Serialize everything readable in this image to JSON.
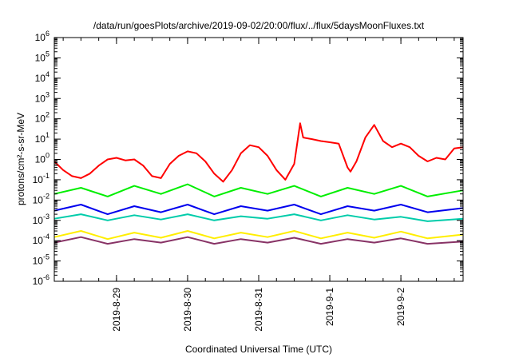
{
  "chart_data": {
    "type": "line",
    "title": "/data/run/goesPlots/archive/2019-09-02/20:00/flux/../flux/5daysMoonFluxes.txt",
    "xlabel": "Coordinated Universal Time (UTC)",
    "ylabel": "protons/cm²-s-sr-MeV",
    "y_scale": "log",
    "ylim_exp": [
      -6,
      6
    ],
    "y_ticks": [
      {
        "base": "10",
        "exp": "-6"
      },
      {
        "base": "10",
        "exp": "-5"
      },
      {
        "base": "10",
        "exp": "-4"
      },
      {
        "base": "10",
        "exp": "-3"
      },
      {
        "base": "10",
        "exp": "-2"
      },
      {
        "base": "10",
        "exp": "-1"
      },
      {
        "base": "10",
        "exp": "0"
      },
      {
        "base": "10",
        "exp": "1"
      },
      {
        "base": "10",
        "exp": "2"
      },
      {
        "base": "10",
        "exp": "3"
      },
      {
        "base": "10",
        "exp": "4"
      },
      {
        "base": "10",
        "exp": "5"
      },
      {
        "base": "10",
        "exp": "6"
      }
    ],
    "xlim": [
      "2019-08-28T03:00",
      "2019-09-02T21:00"
    ],
    "x_ticks": [
      {
        "label": "2019-8-29",
        "t": "2019-08-29T00:00"
      },
      {
        "label": "2019-8-30",
        "t": "2019-08-30T00:00"
      },
      {
        "label": "2019-8-31",
        "t": "2019-08-31T00:00"
      },
      {
        "label": "2019-9-1",
        "t": "2019-09-01T00:00"
      },
      {
        "label": "2019-9-2",
        "t": "2019-09-02T00:00"
      }
    ],
    "legend": "none",
    "series": [
      {
        "color": "#ff0000",
        "x": [
          "2019-08-28T03:00",
          "2019-08-28T06:00",
          "2019-08-28T09:00",
          "2019-08-28T12:00",
          "2019-08-28T15:00",
          "2019-08-28T18:00",
          "2019-08-28T21:00",
          "2019-08-29T00:00",
          "2019-08-29T03:00",
          "2019-08-29T06:00",
          "2019-08-29T09:00",
          "2019-08-29T12:00",
          "2019-08-29T15:00",
          "2019-08-29T18:00",
          "2019-08-29T21:00",
          "2019-08-30T00:00",
          "2019-08-30T03:00",
          "2019-08-30T06:00",
          "2019-08-30T09:00",
          "2019-08-30T12:00",
          "2019-08-30T15:00",
          "2019-08-30T18:00",
          "2019-08-30T21:00",
          "2019-08-31T00:00",
          "2019-08-31T03:00",
          "2019-08-31T06:00",
          "2019-08-31T09:00",
          "2019-08-31T12:00",
          "2019-08-31T14:00",
          "2019-08-31T15:00",
          "2019-08-31T18:00",
          "2019-08-31T21:00",
          "2019-09-01T00:00",
          "2019-09-01T03:00",
          "2019-09-01T06:00",
          "2019-09-01T07:00",
          "2019-09-01T09:00",
          "2019-09-01T12:00",
          "2019-09-01T15:00",
          "2019-09-01T18:00",
          "2019-09-01T21:00",
          "2019-09-02T00:00",
          "2019-09-02T03:00",
          "2019-09-02T06:00",
          "2019-09-02T09:00",
          "2019-09-02T12:00",
          "2019-09-02T15:00",
          "2019-09-02T18:00",
          "2019-09-02T21:00"
        ],
        "y": [
          0.8,
          0.3,
          0.15,
          0.12,
          0.2,
          0.5,
          1.0,
          1.2,
          0.9,
          1.0,
          0.5,
          0.15,
          0.12,
          0.6,
          1.5,
          2.5,
          2.0,
          0.8,
          0.2,
          0.08,
          0.3,
          2.0,
          5.0,
          4.0,
          1.5,
          0.3,
          0.1,
          0.6,
          60,
          12,
          10,
          8,
          7,
          6,
          0.4,
          0.25,
          0.8,
          12,
          50,
          8,
          4,
          6,
          4,
          1.5,
          0.8,
          1.2,
          1.0,
          3.5,
          4.0
        ]
      },
      {
        "color": "#00ee00",
        "x": [
          "2019-08-28T03:00",
          "2019-08-28T12:00",
          "2019-08-28T21:00",
          "2019-08-29T06:00",
          "2019-08-29T15:00",
          "2019-08-30T00:00",
          "2019-08-30T09:00",
          "2019-08-30T18:00",
          "2019-08-31T03:00",
          "2019-08-31T12:00",
          "2019-08-31T21:00",
          "2019-09-01T06:00",
          "2019-09-01T15:00",
          "2019-09-02T00:00",
          "2019-09-02T09:00",
          "2019-09-02T21:00"
        ],
        "y": [
          0.02,
          0.04,
          0.015,
          0.05,
          0.02,
          0.06,
          0.015,
          0.04,
          0.02,
          0.05,
          0.015,
          0.04,
          0.02,
          0.05,
          0.015,
          0.03
        ]
      },
      {
        "color": "#0000ee",
        "x": [
          "2019-08-28T03:00",
          "2019-08-28T12:00",
          "2019-08-28T21:00",
          "2019-08-29T06:00",
          "2019-08-29T15:00",
          "2019-08-30T00:00",
          "2019-08-30T09:00",
          "2019-08-30T18:00",
          "2019-08-31T03:00",
          "2019-08-31T12:00",
          "2019-08-31T21:00",
          "2019-09-01T06:00",
          "2019-09-01T15:00",
          "2019-09-02T00:00",
          "2019-09-02T09:00",
          "2019-09-02T21:00"
        ],
        "y": [
          0.003,
          0.006,
          0.002,
          0.005,
          0.0025,
          0.006,
          0.002,
          0.005,
          0.003,
          0.006,
          0.002,
          0.005,
          0.003,
          0.006,
          0.0025,
          0.004
        ]
      },
      {
        "color": "#00ccaa",
        "x": [
          "2019-08-28T03:00",
          "2019-08-28T12:00",
          "2019-08-28T21:00",
          "2019-08-29T06:00",
          "2019-08-29T15:00",
          "2019-08-30T00:00",
          "2019-08-30T09:00",
          "2019-08-30T18:00",
          "2019-08-31T03:00",
          "2019-08-31T12:00",
          "2019-08-31T21:00",
          "2019-09-01T06:00",
          "2019-09-01T15:00",
          "2019-09-02T00:00",
          "2019-09-02T09:00",
          "2019-09-02T21:00"
        ],
        "y": [
          0.0012,
          0.002,
          0.001,
          0.0018,
          0.0011,
          0.002,
          0.001,
          0.0016,
          0.0012,
          0.002,
          0.001,
          0.0018,
          0.0011,
          0.0015,
          0.0009,
          0.0012
        ]
      },
      {
        "color": "#ffee00",
        "x": [
          "2019-08-28T03:00",
          "2019-08-28T12:00",
          "2019-08-28T21:00",
          "2019-08-29T06:00",
          "2019-08-29T15:00",
          "2019-08-30T00:00",
          "2019-08-30T09:00",
          "2019-08-30T18:00",
          "2019-08-31T03:00",
          "2019-08-31T12:00",
          "2019-08-31T21:00",
          "2019-09-01T06:00",
          "2019-09-01T15:00",
          "2019-09-02T00:00",
          "2019-09-02T09:00",
          "2019-09-02T21:00"
        ],
        "y": [
          0.00015,
          0.0003,
          0.00012,
          0.00025,
          0.00014,
          0.0003,
          0.00013,
          0.00025,
          0.00015,
          0.0003,
          0.00013,
          0.00025,
          0.00014,
          0.00028,
          0.00013,
          0.0002
        ]
      },
      {
        "color": "#883366",
        "x": [
          "2019-08-28T03:00",
          "2019-08-28T12:00",
          "2019-08-28T21:00",
          "2019-08-29T06:00",
          "2019-08-29T15:00",
          "2019-08-30T00:00",
          "2019-08-30T09:00",
          "2019-08-30T18:00",
          "2019-08-31T03:00",
          "2019-08-31T12:00",
          "2019-08-31T21:00",
          "2019-09-01T06:00",
          "2019-09-01T15:00",
          "2019-09-02T00:00",
          "2019-09-02T09:00",
          "2019-09-02T21:00"
        ],
        "y": [
          8e-05,
          0.00015,
          7e-05,
          0.00012,
          8e-05,
          0.00015,
          7e-05,
          0.00012,
          8e-05,
          0.00014,
          7e-05,
          0.00012,
          8e-05,
          0.00013,
          7e-05,
          9e-05
        ]
      }
    ]
  }
}
